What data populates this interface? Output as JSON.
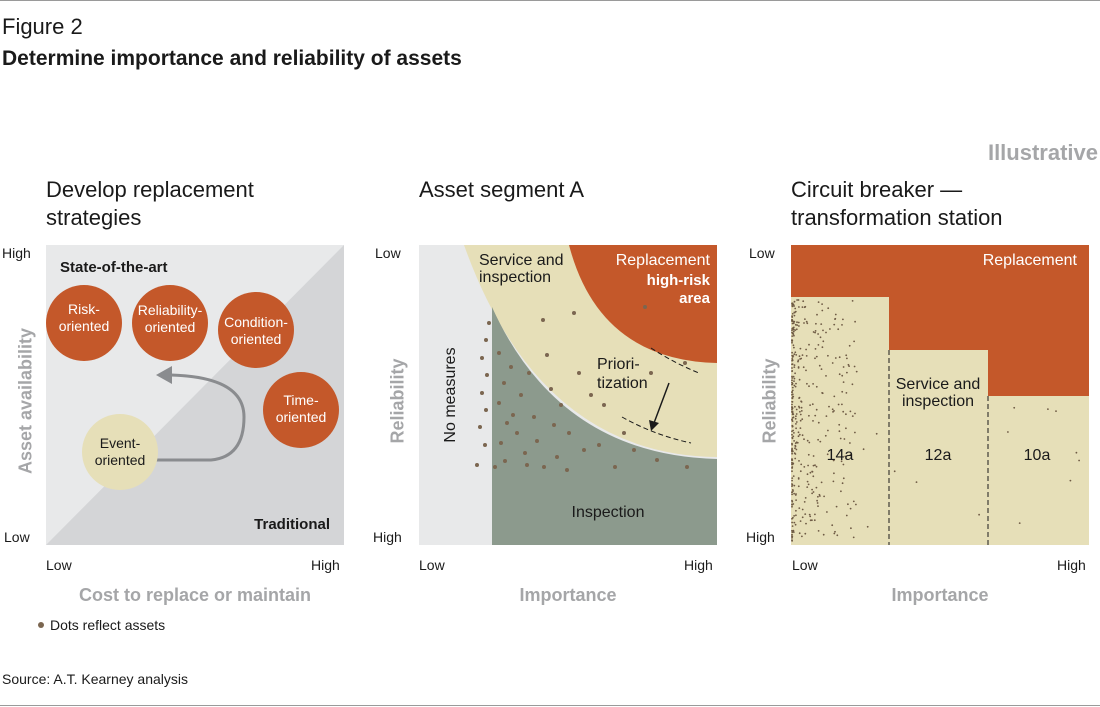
{
  "figure_label": "Figure 2",
  "figure_title": "Determine importance and reliability of assets",
  "illustrative": "Illustrative",
  "panel1": {
    "title_line1": "Develop replacement",
    "title_line2": "strategies",
    "y_high": "High",
    "y_low": "Low",
    "x_low": "Low",
    "x_high": "High",
    "x_axis": "Cost to replace or maintain",
    "y_axis": "Asset availability",
    "state_of_art": "State-of-the-art",
    "traditional": "Traditional",
    "risk_1": "Risk-",
    "risk_2": "oriented",
    "reliability_1": "Reliability-",
    "reliability_2": "oriented",
    "condition_1": "Condition-",
    "condition_2": "oriented",
    "time_1": "Time-",
    "time_2": "oriented",
    "event_1": "Event-",
    "event_2": "oriented"
  },
  "panel2": {
    "title": "Asset segment A",
    "y_top": "Low",
    "y_bottom": "High",
    "x_low": "Low",
    "x_high": "High",
    "x_axis": "Importance",
    "y_axis": "Reliability",
    "service_1": "Service and",
    "service_2": "inspection",
    "replacement": "Replacement",
    "high_risk_1": "high-risk",
    "high_risk_2": "area",
    "priori_1": "Priori-",
    "priori_2": "tization",
    "no_measures": "No measures",
    "inspection": "Inspection"
  },
  "panel3": {
    "title_line1": "Circuit breaker —",
    "title_line2": "transformation station",
    "y_top": "Low",
    "y_bottom": "High",
    "x_low": "Low",
    "x_high": "High",
    "x_axis": "Importance",
    "y_axis": "Reliability",
    "replacement": "Replacement",
    "service_1": "Service and",
    "service_2": "inspection",
    "seg_1": "14a",
    "seg_2": "12a",
    "seg_3": "10a"
  },
  "note": "Dots reflect assets",
  "source": "Source: A.T. Kearney analysis",
  "colors": {
    "orange": "#c4582a",
    "beige": "#e6dfb8",
    "green_gray": "#8c9a8d",
    "light_gray": "#e8e9ea",
    "mid_gray": "#d4d5d7",
    "dot": "#7b6650",
    "axis_gray": "#a5a6a8"
  }
}
